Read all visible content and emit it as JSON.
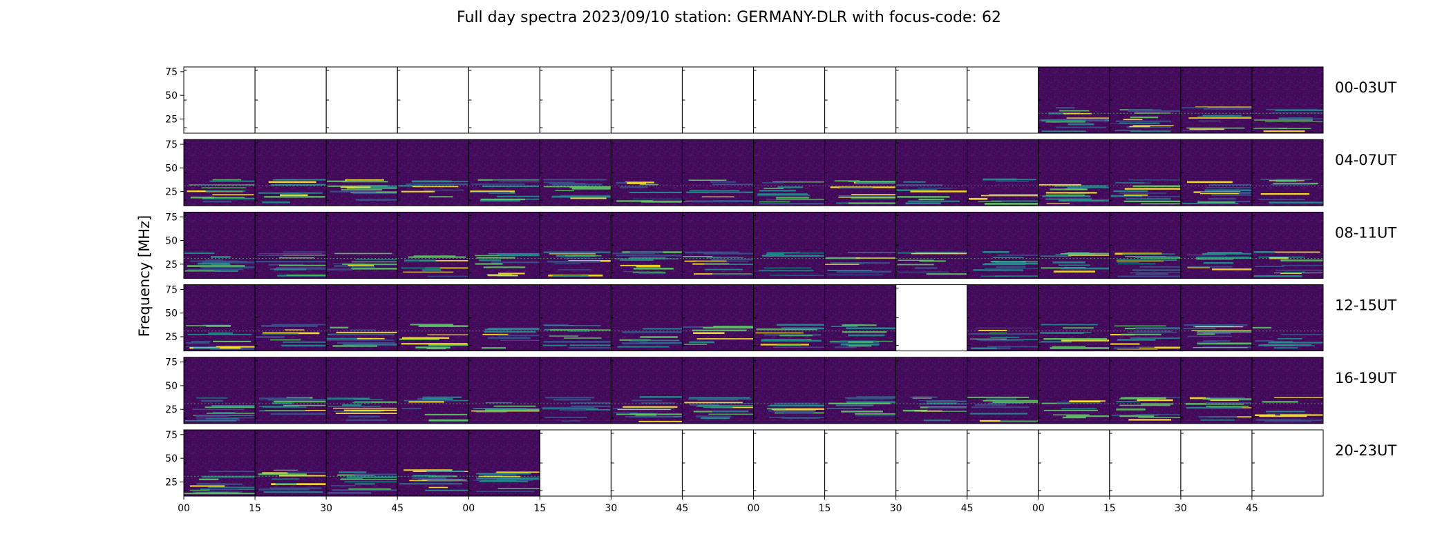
{
  "chart_data": {
    "type": "heatmap",
    "title": "Full day spectra 2023/09/10 station: GERMANY-DLR with focus-code: 62",
    "ylabel": "Frequency [MHz]",
    "xlabel": "",
    "ylim": [
      10,
      80
    ],
    "y_ticks": [
      "75",
      "50",
      "25"
    ],
    "y_tick_values": [
      75,
      50,
      25
    ],
    "x_ticks": [
      "00",
      "15",
      "30",
      "45",
      "00",
      "15",
      "30",
      "45",
      "00",
      "15",
      "30",
      "45",
      "00",
      "15",
      "30",
      "45"
    ],
    "rows": [
      {
        "label": "00-03UT",
        "panels_with_data": [
          false,
          false,
          false,
          false,
          false,
          false,
          false,
          false,
          false,
          false,
          false,
          false,
          true,
          true,
          true,
          true
        ]
      },
      {
        "label": "04-07UT",
        "panels_with_data": [
          true,
          true,
          true,
          true,
          true,
          true,
          true,
          true,
          true,
          true,
          true,
          true,
          true,
          true,
          true,
          true
        ]
      },
      {
        "label": "08-11UT",
        "panels_with_data": [
          true,
          true,
          true,
          true,
          true,
          true,
          true,
          true,
          true,
          true,
          true,
          true,
          true,
          true,
          true,
          true
        ]
      },
      {
        "label": "12-15UT",
        "panels_with_data": [
          true,
          true,
          true,
          true,
          true,
          true,
          true,
          true,
          true,
          true,
          false,
          true,
          true,
          true,
          true,
          true
        ]
      },
      {
        "label": "16-19UT",
        "panels_with_data": [
          true,
          true,
          true,
          true,
          true,
          true,
          true,
          true,
          true,
          true,
          true,
          true,
          true,
          true,
          true,
          true
        ]
      },
      {
        "label": "20-23UT",
        "panels_with_data": [
          true,
          true,
          true,
          true,
          true,
          false,
          false,
          false,
          false,
          false,
          false,
          false,
          false,
          false,
          false,
          false
        ]
      }
    ],
    "colormap": [
      "#440154",
      "#3b528b",
      "#21918c",
      "#5ec962",
      "#fde725"
    ],
    "background_color": "#45095a",
    "grid": false,
    "legend": "none"
  }
}
